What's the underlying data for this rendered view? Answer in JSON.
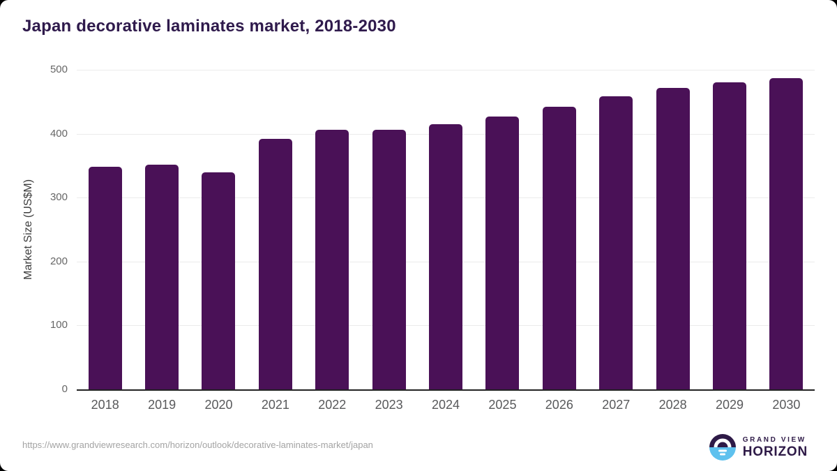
{
  "title": "Japan decorative laminates market, 2018-2030",
  "chart_data": {
    "type": "bar",
    "categories": [
      "2018",
      "2019",
      "2020",
      "2021",
      "2022",
      "2023",
      "2024",
      "2025",
      "2026",
      "2027",
      "2028",
      "2029",
      "2030"
    ],
    "values": [
      348,
      351,
      340,
      392,
      406,
      406,
      415,
      427,
      442,
      458,
      472,
      480,
      487
    ],
    "title": "Japan decorative laminates market, 2018-2030",
    "xlabel": "",
    "ylabel": "Market Size (US$M)",
    "ylim": [
      0,
      500
    ],
    "yticks": [
      0,
      100,
      200,
      300,
      400,
      500
    ],
    "grid": true,
    "legend": false,
    "bar_color": "#4a1157"
  },
  "colors": {
    "title": "#2f1a4c",
    "bar": "#4a1157",
    "axis_label": "#3d3d3d",
    "tick_label": "#666666",
    "gridline": "#ebebeb",
    "baseline": "#222222",
    "url_text": "#a3a3a3",
    "logo_purple": "#2e1a47",
    "logo_blue": "#5ec1ee",
    "card_bg": "#ffffff",
    "page_bg": "#000000"
  },
  "footer": {
    "source_url": "https://www.grandviewresearch.com/horizon/outlook/decorative-laminates-market/japan",
    "logo": {
      "line1": "GRAND VIEW",
      "line2": "HORIZON"
    }
  }
}
